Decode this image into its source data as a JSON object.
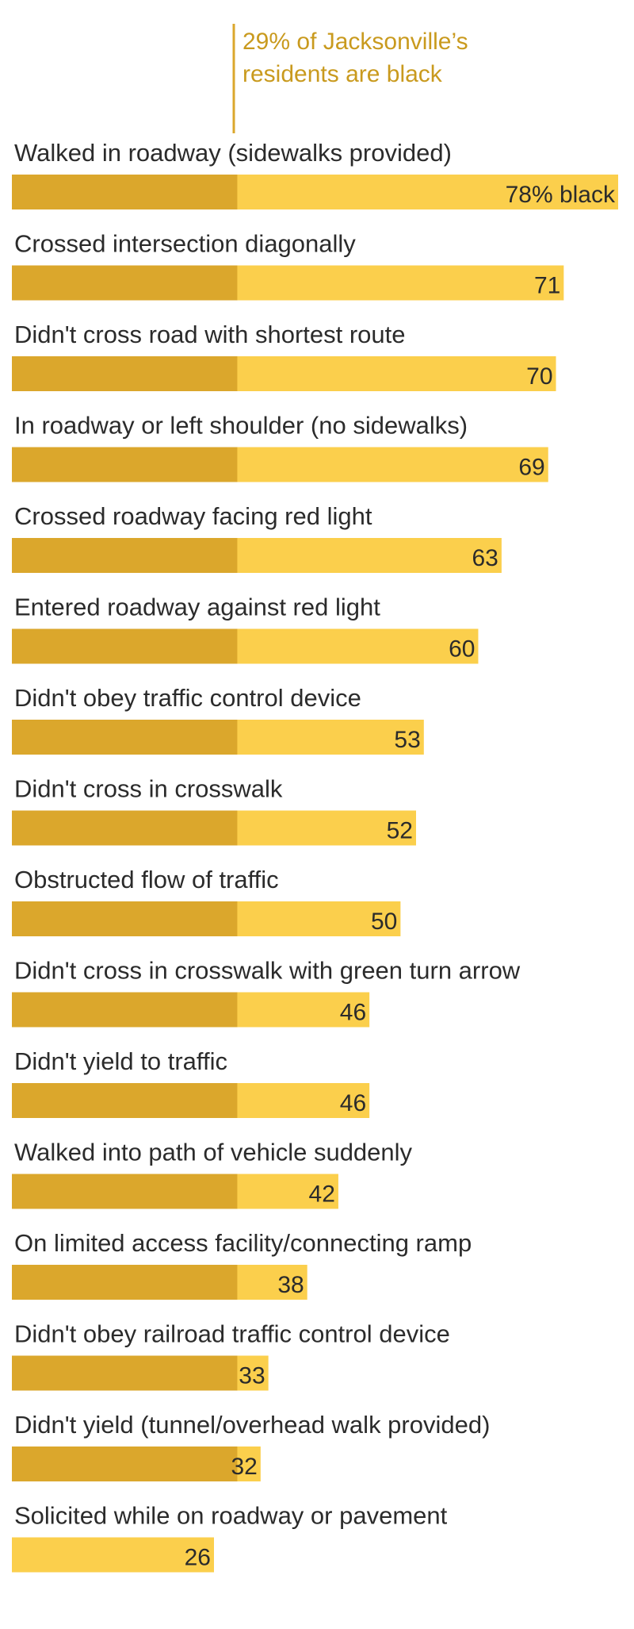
{
  "colors": {
    "background": "#ffffff",
    "bar_light": "#fbcf4c",
    "bar_dark": "#dba72c",
    "reference_line": "#dba72c",
    "annotation_text": "#c99a1e",
    "label_text": "#2b2b2b"
  },
  "annotation": {
    "line1": "29% of Jacksonville’s",
    "line2": "residents are black"
  },
  "chart_data": {
    "type": "bar",
    "orientation": "horizontal",
    "xlim": [
      0,
      78
    ],
    "reference_value": 29,
    "categories": [
      "Walked in roadway (sidewalks provided)",
      "Crossed intersection diagonally",
      "Didn't cross road with shortest route",
      "In roadway or left shoulder (no sidewalks)",
      "Crossed roadway facing red light",
      "Entered roadway against red light",
      "Didn't obey traffic control device",
      "Didn't cross in crosswalk",
      "Obstructed flow of traffic",
      "Didn't cross in crosswalk with green turn arrow",
      "Didn't yield to traffic",
      "Walked into path of vehicle suddenly",
      "On limited access facility/connecting ramp",
      "Didn't obey railroad traffic control device",
      "Didn't yield  (tunnel/overhead walk provided)",
      "Solicited while on roadway or pavement"
    ],
    "values": [
      78,
      71,
      70,
      69,
      63,
      60,
      53,
      52,
      50,
      46,
      46,
      42,
      38,
      33,
      32,
      26
    ],
    "value_labels": [
      "78% black",
      "71",
      "70",
      "69",
      "63",
      "60",
      "53",
      "52",
      "50",
      "46",
      "46",
      "42",
      "38",
      "33",
      "32",
      "26"
    ]
  }
}
